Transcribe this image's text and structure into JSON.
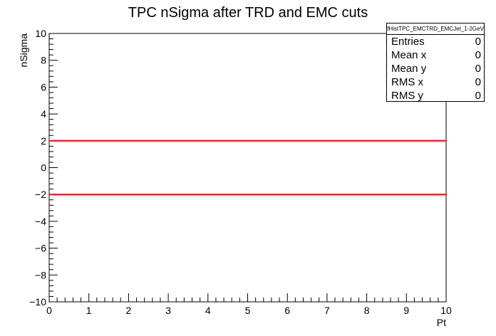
{
  "chart_data": {
    "type": "line",
    "title": "TPC nSigma after TRD and EMC cuts",
    "xlabel": "Pt",
    "ylabel": "nSigma",
    "xlim": [
      0,
      10
    ],
    "ylim": [
      -10,
      10
    ],
    "x_ticks": [
      "0",
      "1",
      "2",
      "3",
      "4",
      "5",
      "6",
      "7",
      "8",
      "9",
      "10"
    ],
    "y_ticks": [
      "−10",
      "−8",
      "−6",
      "−4",
      "−2",
      "0",
      "2",
      "4",
      "6",
      "8",
      "10"
    ],
    "series": [
      {
        "x": [
          0,
          10
        ],
        "values": [
          2,
          2
        ],
        "color": "#ff0000"
      },
      {
        "x": [
          0,
          10
        ],
        "values": [
          -2,
          -2
        ],
        "color": "#ff0000"
      }
    ],
    "grid": false,
    "stats_box": {
      "title": "fHistTPC_EMCTRD_EMCJet_1-2GeV",
      "rows": [
        {
          "label": "Entries",
          "value": "0"
        },
        {
          "label": "Mean x",
          "value": "0"
        },
        {
          "label": "Mean y",
          "value": "0"
        },
        {
          "label": "RMS x",
          "value": "0"
        },
        {
          "label": "RMS y",
          "value": "0"
        }
      ]
    }
  }
}
